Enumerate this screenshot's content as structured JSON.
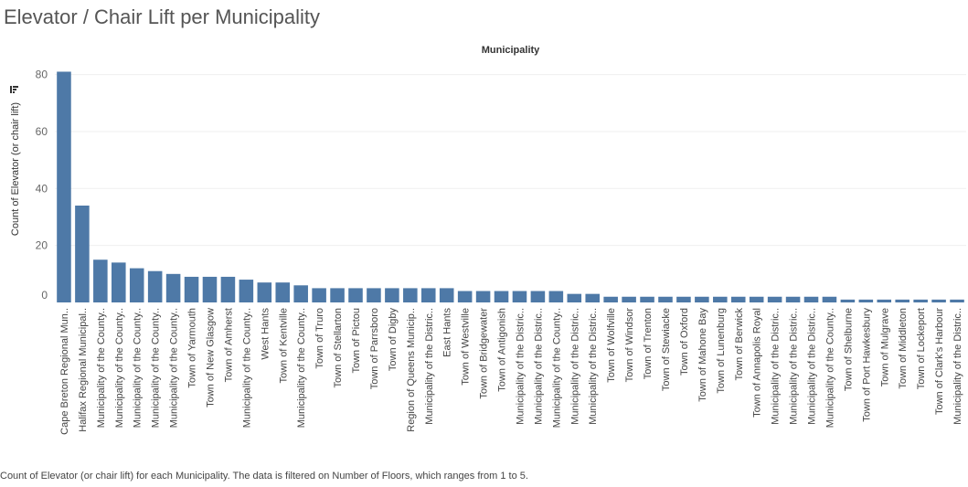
{
  "page": {
    "title": "Elevator / Chair Lift per Municipality",
    "caption": "Count of Elevator (or chair lift) for each Municipality. The data is filtered on Number of Floors, which ranges from 1 to 5."
  },
  "colors": {
    "bar": "#4e79a7",
    "grid": "#efefef"
  },
  "icons": {
    "sort": "sort-descending-icon"
  },
  "chart_data": {
    "type": "bar",
    "column_header": "Municipality",
    "ylabel": "Count of Elevator (or chair lift)",
    "xlabel": "",
    "ylim": [
      0,
      85
    ],
    "yticks": [
      0,
      20,
      40,
      60,
      80
    ],
    "grid": true,
    "categories": [
      "Cape Breton Regional Mun..",
      "Halifax Regional Municipal..",
      "Municipality of the County..",
      "Municipality of the County..",
      "Municipality of the County..",
      "Municipality of the County..",
      "Municipality of the County..",
      "Town of Yarmouth",
      "Town of New Glasgow",
      "Town of Amherst",
      "Municipality of the County..",
      "West Hants",
      "Town of Kentville",
      "Municipality of the County..",
      "Town of Truro",
      "Town of Stellarton",
      "Town of Pictou",
      "Town of Parrsboro",
      "Town of Digby",
      "Region of Queens Municip..",
      "Municipality of the Distric..",
      "East Hants",
      "Town of Westville",
      "Town of Bridgewater",
      "Town of Antigonish",
      "Municipality of the Distric..",
      "Municipality of the Distric..",
      "Municipality of the County..",
      "Municipality of the Distric..",
      "Municipality of the Distric..",
      "Town of Wolfville",
      "Town of Windsor",
      "Town of Trenton",
      "Town of Stewiacke",
      "Town of Oxford",
      "Town of Mahone Bay",
      "Town of Lunenburg",
      "Town of Berwick",
      "Town of Annapolis Royal",
      "Municipality of the Distric..",
      "Municipality of the Distric..",
      "Municipality of the Distric..",
      "Municipality of the County..",
      "Town of Shelburne",
      "Town of Port Hawkesbury",
      "Town of Mulgrave",
      "Town of Middleton",
      "Town of Lockeport",
      "Town of Clark's Harbour",
      "Municipality of the Distric.."
    ],
    "values": [
      81,
      34,
      15,
      14,
      12,
      11,
      10,
      9,
      9,
      9,
      8,
      7,
      7,
      6,
      5,
      5,
      5,
      5,
      5,
      5,
      5,
      5,
      4,
      4,
      4,
      4,
      4,
      4,
      3,
      3,
      2,
      2,
      2,
      2,
      2,
      2,
      2,
      2,
      2,
      2,
      2,
      2,
      2,
      1,
      1,
      1,
      1,
      1,
      1,
      1
    ]
  }
}
